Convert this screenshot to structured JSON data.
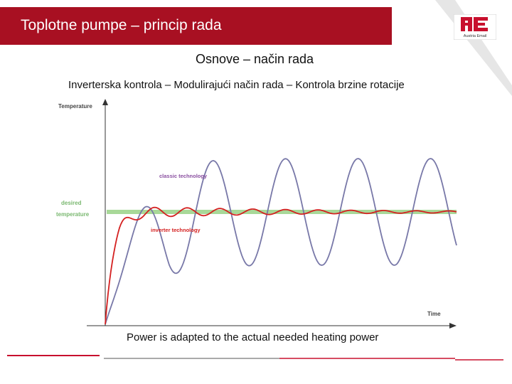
{
  "slide": {
    "title": "Toplotne pumpe – princip rada",
    "subtitle": "Osnove – način rada",
    "subheading": "Inverterska kontrola – Modulirajući način rada – Kontrola brzine rotacije",
    "caption": "Power is adapted to the actual needed heating power"
  },
  "logo": {
    "mark": "AE",
    "text": "Austria Email",
    "color": "#c8102e"
  },
  "chart_data": {
    "type": "line",
    "ylabel": "Temperature",
    "xlabel": "Time",
    "desired_label": [
      "desired",
      "temperature"
    ],
    "series": [
      {
        "name": "classic technology",
        "color": "#7878a8"
      },
      {
        "name": "inverter technology",
        "color": "#d42020"
      }
    ],
    "desired_band_color": "#a8d898"
  }
}
